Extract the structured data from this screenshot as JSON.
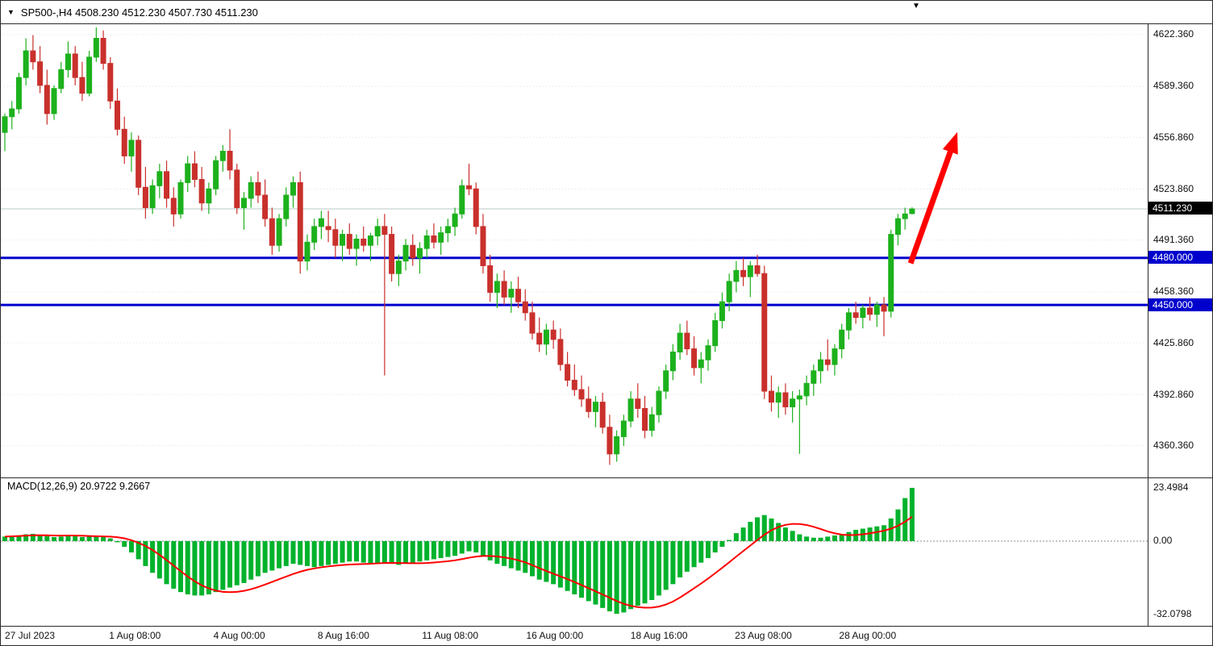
{
  "header": {
    "expand_icon": "▼",
    "title": "SP500-,H4 4508.230 4512.230 4507.730 4511.230"
  },
  "shift_marker_icon": "▼",
  "chart_data": {
    "type": "candlestick",
    "symbol": "SP500-",
    "timeframe": "H4",
    "open": "4508.230",
    "high": "4512.230",
    "low": "4507.730",
    "close": "4511.230",
    "current_price": {
      "value": 4511.23,
      "label": "4511.230",
      "badge_color": "#000000"
    },
    "support_resistance_lines": [
      {
        "value": 4480.0,
        "label": "4480.000",
        "color": "#0000cd"
      },
      {
        "value": 4450.0,
        "label": "4450.000",
        "color": "#0000cd"
      }
    ],
    "price_axis_labels": [
      "4622.360",
      "4589.360",
      "4556.860",
      "4523.860",
      "4491.360",
      "4458.360",
      "4425.860",
      "4392.860",
      "4360.360"
    ],
    "time_axis_labels": [
      "27 Jul 2023",
      "1 Aug 08:00",
      "4 Aug 00:00",
      "8 Aug 16:00",
      "11 Aug 08:00",
      "16 Aug 00:00",
      "18 Aug 16:00",
      "23 Aug 08:00",
      "28 Aug 00:00"
    ],
    "price_range": [
      4340,
      4629
    ],
    "annotation": {
      "type": "arrow-up-right",
      "color": "#ff0000"
    },
    "colors": {
      "bull": "#1db11d",
      "bear": "#c9302c",
      "grid": "#e3e3e3",
      "price_line": "#b8c8c8"
    },
    "candles_ohlc": [
      [
        4560,
        4572,
        4548,
        4570
      ],
      [
        4570,
        4580,
        4562,
        4575
      ],
      [
        4575,
        4598,
        4572,
        4595
      ],
      [
        4595,
        4620,
        4590,
        4612
      ],
      [
        4612,
        4622,
        4600,
        4605
      ],
      [
        4605,
        4615,
        4585,
        4590
      ],
      [
        4590,
        4600,
        4565,
        4572
      ],
      [
        4572,
        4590,
        4568,
        4588
      ],
      [
        4588,
        4605,
        4585,
        4600
      ],
      [
        4600,
        4618,
        4595,
        4610
      ],
      [
        4610,
        4615,
        4590,
        4595
      ],
      [
        4595,
        4605,
        4580,
        4585
      ],
      [
        4585,
        4612,
        4583,
        4608
      ],
      [
        4608,
        4627,
        4605,
        4620
      ],
      [
        4620,
        4625,
        4600,
        4604
      ],
      [
        4604,
        4608,
        4575,
        4580
      ],
      [
        4580,
        4588,
        4558,
        4562
      ],
      [
        4562,
        4570,
        4540,
        4545
      ],
      [
        4545,
        4560,
        4535,
        4555
      ],
      [
        4555,
        4558,
        4520,
        4525
      ],
      [
        4525,
        4538,
        4505,
        4512
      ],
      [
        4512,
        4530,
        4508,
        4526
      ],
      [
        4526,
        4540,
        4518,
        4535
      ],
      [
        4535,
        4542,
        4512,
        4518
      ],
      [
        4518,
        4525,
        4500,
        4508
      ],
      [
        4508,
        4530,
        4505,
        4528
      ],
      [
        4528,
        4545,
        4522,
        4540
      ],
      [
        4540,
        4548,
        4525,
        4530
      ],
      [
        4530,
        4538,
        4510,
        4515
      ],
      [
        4515,
        4528,
        4508,
        4524
      ],
      [
        4524,
        4545,
        4520,
        4542
      ],
      [
        4542,
        4552,
        4535,
        4548
      ],
      [
        4548,
        4562,
        4530,
        4536
      ],
      [
        4536,
        4540,
        4508,
        4512
      ],
      [
        4512,
        4522,
        4498,
        4518
      ],
      [
        4518,
        4532,
        4512,
        4528
      ],
      [
        4528,
        4535,
        4515,
        4520
      ],
      [
        4520,
        4530,
        4500,
        4505
      ],
      [
        4505,
        4512,
        4482,
        4488
      ],
      [
        4488,
        4508,
        4484,
        4505
      ],
      [
        4505,
        4525,
        4500,
        4520
      ],
      [
        4520,
        4532,
        4512,
        4528
      ],
      [
        4528,
        4535,
        4470,
        4478
      ],
      [
        4478,
        4495,
        4472,
        4490
      ],
      [
        4490,
        4505,
        4485,
        4500
      ],
      [
        4500,
        4510,
        4492,
        4505
      ],
      [
        4500,
        4510,
        4490,
        4498
      ],
      [
        4498,
        4505,
        4480,
        4488
      ],
      [
        4488,
        4498,
        4478,
        4495
      ],
      [
        4495,
        4502,
        4482,
        4486
      ],
      [
        4486,
        4495,
        4475,
        4492
      ],
      [
        4492,
        4500,
        4484,
        4488
      ],
      [
        4488,
        4496,
        4478,
        4494
      ],
      [
        4494,
        4505,
        4488,
        4500
      ],
      [
        4500,
        4508,
        4405,
        4495
      ],
      [
        4495,
        4500,
        4465,
        4470
      ],
      [
        4470,
        4482,
        4462,
        4478
      ],
      [
        4478,
        4492,
        4472,
        4488
      ],
      [
        4488,
        4495,
        4475,
        4480
      ],
      [
        4480,
        4490,
        4470,
        4486
      ],
      [
        4486,
        4498,
        4480,
        4494
      ],
      [
        4494,
        4502,
        4486,
        4490
      ],
      [
        4490,
        4500,
        4482,
        4496
      ],
      [
        4496,
        4505,
        4490,
        4500
      ],
      [
        4500,
        4512,
        4494,
        4508
      ],
      [
        4508,
        4530,
        4505,
        4526
      ],
      [
        4526,
        4540,
        4520,
        4524
      ],
      [
        4524,
        4528,
        4495,
        4500
      ],
      [
        4500,
        4508,
        4470,
        4475
      ],
      [
        4475,
        4482,
        4452,
        4458
      ],
      [
        4458,
        4470,
        4448,
        4465
      ],
      [
        4465,
        4472,
        4450,
        4455
      ],
      [
        4455,
        4465,
        4445,
        4460
      ],
      [
        4460,
        4468,
        4448,
        4452
      ],
      [
        4452,
        4460,
        4440,
        4445
      ],
      [
        4445,
        4452,
        4428,
        4432
      ],
      [
        4432,
        4442,
        4420,
        4425
      ],
      [
        4425,
        4438,
        4418,
        4434
      ],
      [
        4434,
        4440,
        4422,
        4428
      ],
      [
        4428,
        4435,
        4408,
        4412
      ],
      [
        4412,
        4420,
        4398,
        4402
      ],
      [
        4402,
        4412,
        4392,
        4396
      ],
      [
        4396,
        4405,
        4385,
        4390
      ],
      [
        4390,
        4398,
        4378,
        4382
      ],
      [
        4382,
        4392,
        4372,
        4388
      ],
      [
        4388,
        4394,
        4368,
        4372
      ],
      [
        4372,
        4380,
        4348,
        4355
      ],
      [
        4355,
        4370,
        4350,
        4366
      ],
      [
        4366,
        4380,
        4360,
        4376
      ],
      [
        4376,
        4395,
        4372,
        4390
      ],
      [
        4390,
        4400,
        4378,
        4384
      ],
      [
        4384,
        4392,
        4365,
        4370
      ],
      [
        4370,
        4385,
        4366,
        4380
      ],
      [
        4380,
        4398,
        4375,
        4395
      ],
      [
        4395,
        4412,
        4390,
        4408
      ],
      [
        4408,
        4425,
        4402,
        4420
      ],
      [
        4420,
        4438,
        4415,
        4432
      ],
      [
        4432,
        4440,
        4418,
        4422
      ],
      [
        4422,
        4430,
        4405,
        4410
      ],
      [
        4410,
        4420,
        4400,
        4415
      ],
      [
        4415,
        4428,
        4408,
        4424
      ],
      [
        4424,
        4445,
        4420,
        4440
      ],
      [
        4440,
        4458,
        4435,
        4452
      ],
      [
        4452,
        4470,
        4446,
        4465
      ],
      [
        4465,
        4478,
        4458,
        4472
      ],
      [
        4472,
        4480,
        4462,
        4468
      ],
      [
        4468,
        4478,
        4455,
        4475
      ],
      [
        4475,
        4482,
        4468,
        4470
      ],
      [
        4470,
        4475,
        4390,
        4395
      ],
      [
        4395,
        4405,
        4382,
        4388
      ],
      [
        4388,
        4398,
        4378,
        4394
      ],
      [
        4394,
        4400,
        4380,
        4385
      ],
      [
        4385,
        4395,
        4375,
        4390
      ],
      [
        4390,
        4396,
        4355,
        4392
      ],
      [
        4392,
        4405,
        4386,
        4400
      ],
      [
        4400,
        4412,
        4392,
        4408
      ],
      [
        4408,
        4420,
        4400,
        4415
      ],
      [
        4415,
        4428,
        4408,
        4412
      ],
      [
        4412,
        4425,
        4405,
        4422
      ],
      [
        4422,
        4438,
        4416,
        4434
      ],
      [
        4434,
        4448,
        4428,
        4445
      ],
      [
        4445,
        4452,
        4438,
        4442
      ],
      [
        4442,
        4450,
        4435,
        4448
      ],
      [
        4448,
        4455,
        4440,
        4444
      ],
      [
        4444,
        4452,
        4436,
        4450
      ],
      [
        4450,
        4455,
        4430,
        4446
      ],
      [
        4446,
        4498,
        4442,
        4495
      ],
      [
        4495,
        4508,
        4488,
        4505
      ],
      [
        4505,
        4512,
        4498,
        4508
      ],
      [
        4508.23,
        4512.23,
        4507.73,
        4511.23
      ]
    ],
    "macd": {
      "label": "MACD(12,26,9) 20.9722 9.2667",
      "params": "12,26,9",
      "value_main": "20.9722",
      "value_signal": "9.2667",
      "axis_labels": [
        "23.4984",
        "0.00",
        "-32.0798"
      ],
      "axis_values": [
        23.4984,
        0.0,
        -32.0798
      ],
      "histogram_color": "#00b22c",
      "signal_color": "#ff0000",
      "histogram": [
        2.0,
        2.2,
        2.5,
        3.0,
        3.2,
        2.8,
        2.2,
        1.8,
        2.0,
        2.4,
        2.2,
        1.8,
        2.0,
        2.4,
        2.0,
        1.2,
        -0.5,
        -2.5,
        -5.0,
        -8.0,
        -11.0,
        -14.0,
        -16.5,
        -19.0,
        -21.0,
        -22.5,
        -23.5,
        -24.0,
        -24.0,
        -23.5,
        -22.5,
        -21.5,
        -20.5,
        -19.5,
        -18.5,
        -17.0,
        -15.5,
        -14.0,
        -13.0,
        -12.0,
        -11.0,
        -10.0,
        -10.5,
        -11.0,
        -11.5,
        -11.0,
        -10.5,
        -10.0,
        -9.5,
        -9.0,
        -9.0,
        -9.5,
        -10.0,
        -10.0,
        -9.5,
        -10.0,
        -10.5,
        -10.0,
        -9.5,
        -9.0,
        -8.5,
        -8.0,
        -7.5,
        -7.0,
        -6.5,
        -5.5,
        -4.5,
        -5.0,
        -6.5,
        -8.5,
        -10.0,
        -11.0,
        -12.0,
        -13.0,
        -14.0,
        -15.5,
        -17.0,
        -18.0,
        -19.0,
        -20.5,
        -22.0,
        -23.5,
        -25.0,
        -26.5,
        -28.0,
        -29.5,
        -31.0,
        -32.08,
        -31.5,
        -30.0,
        -28.5,
        -27.5,
        -26.0,
        -24.0,
        -21.5,
        -19.0,
        -16.0,
        -13.5,
        -11.5,
        -9.5,
        -7.5,
        -5.0,
        -2.5,
        0.5,
        3.5,
        6.0,
        8.5,
        10.5,
        11.5,
        10.0,
        8.0,
        6.0,
        4.5,
        3.0,
        2.0,
        1.5,
        1.5,
        2.0,
        2.5,
        3.0,
        4.0,
        5.0,
        5.5,
        6.0,
        6.5,
        7.0,
        10.0,
        14.0,
        19.0,
        23.4984
      ]
    }
  }
}
